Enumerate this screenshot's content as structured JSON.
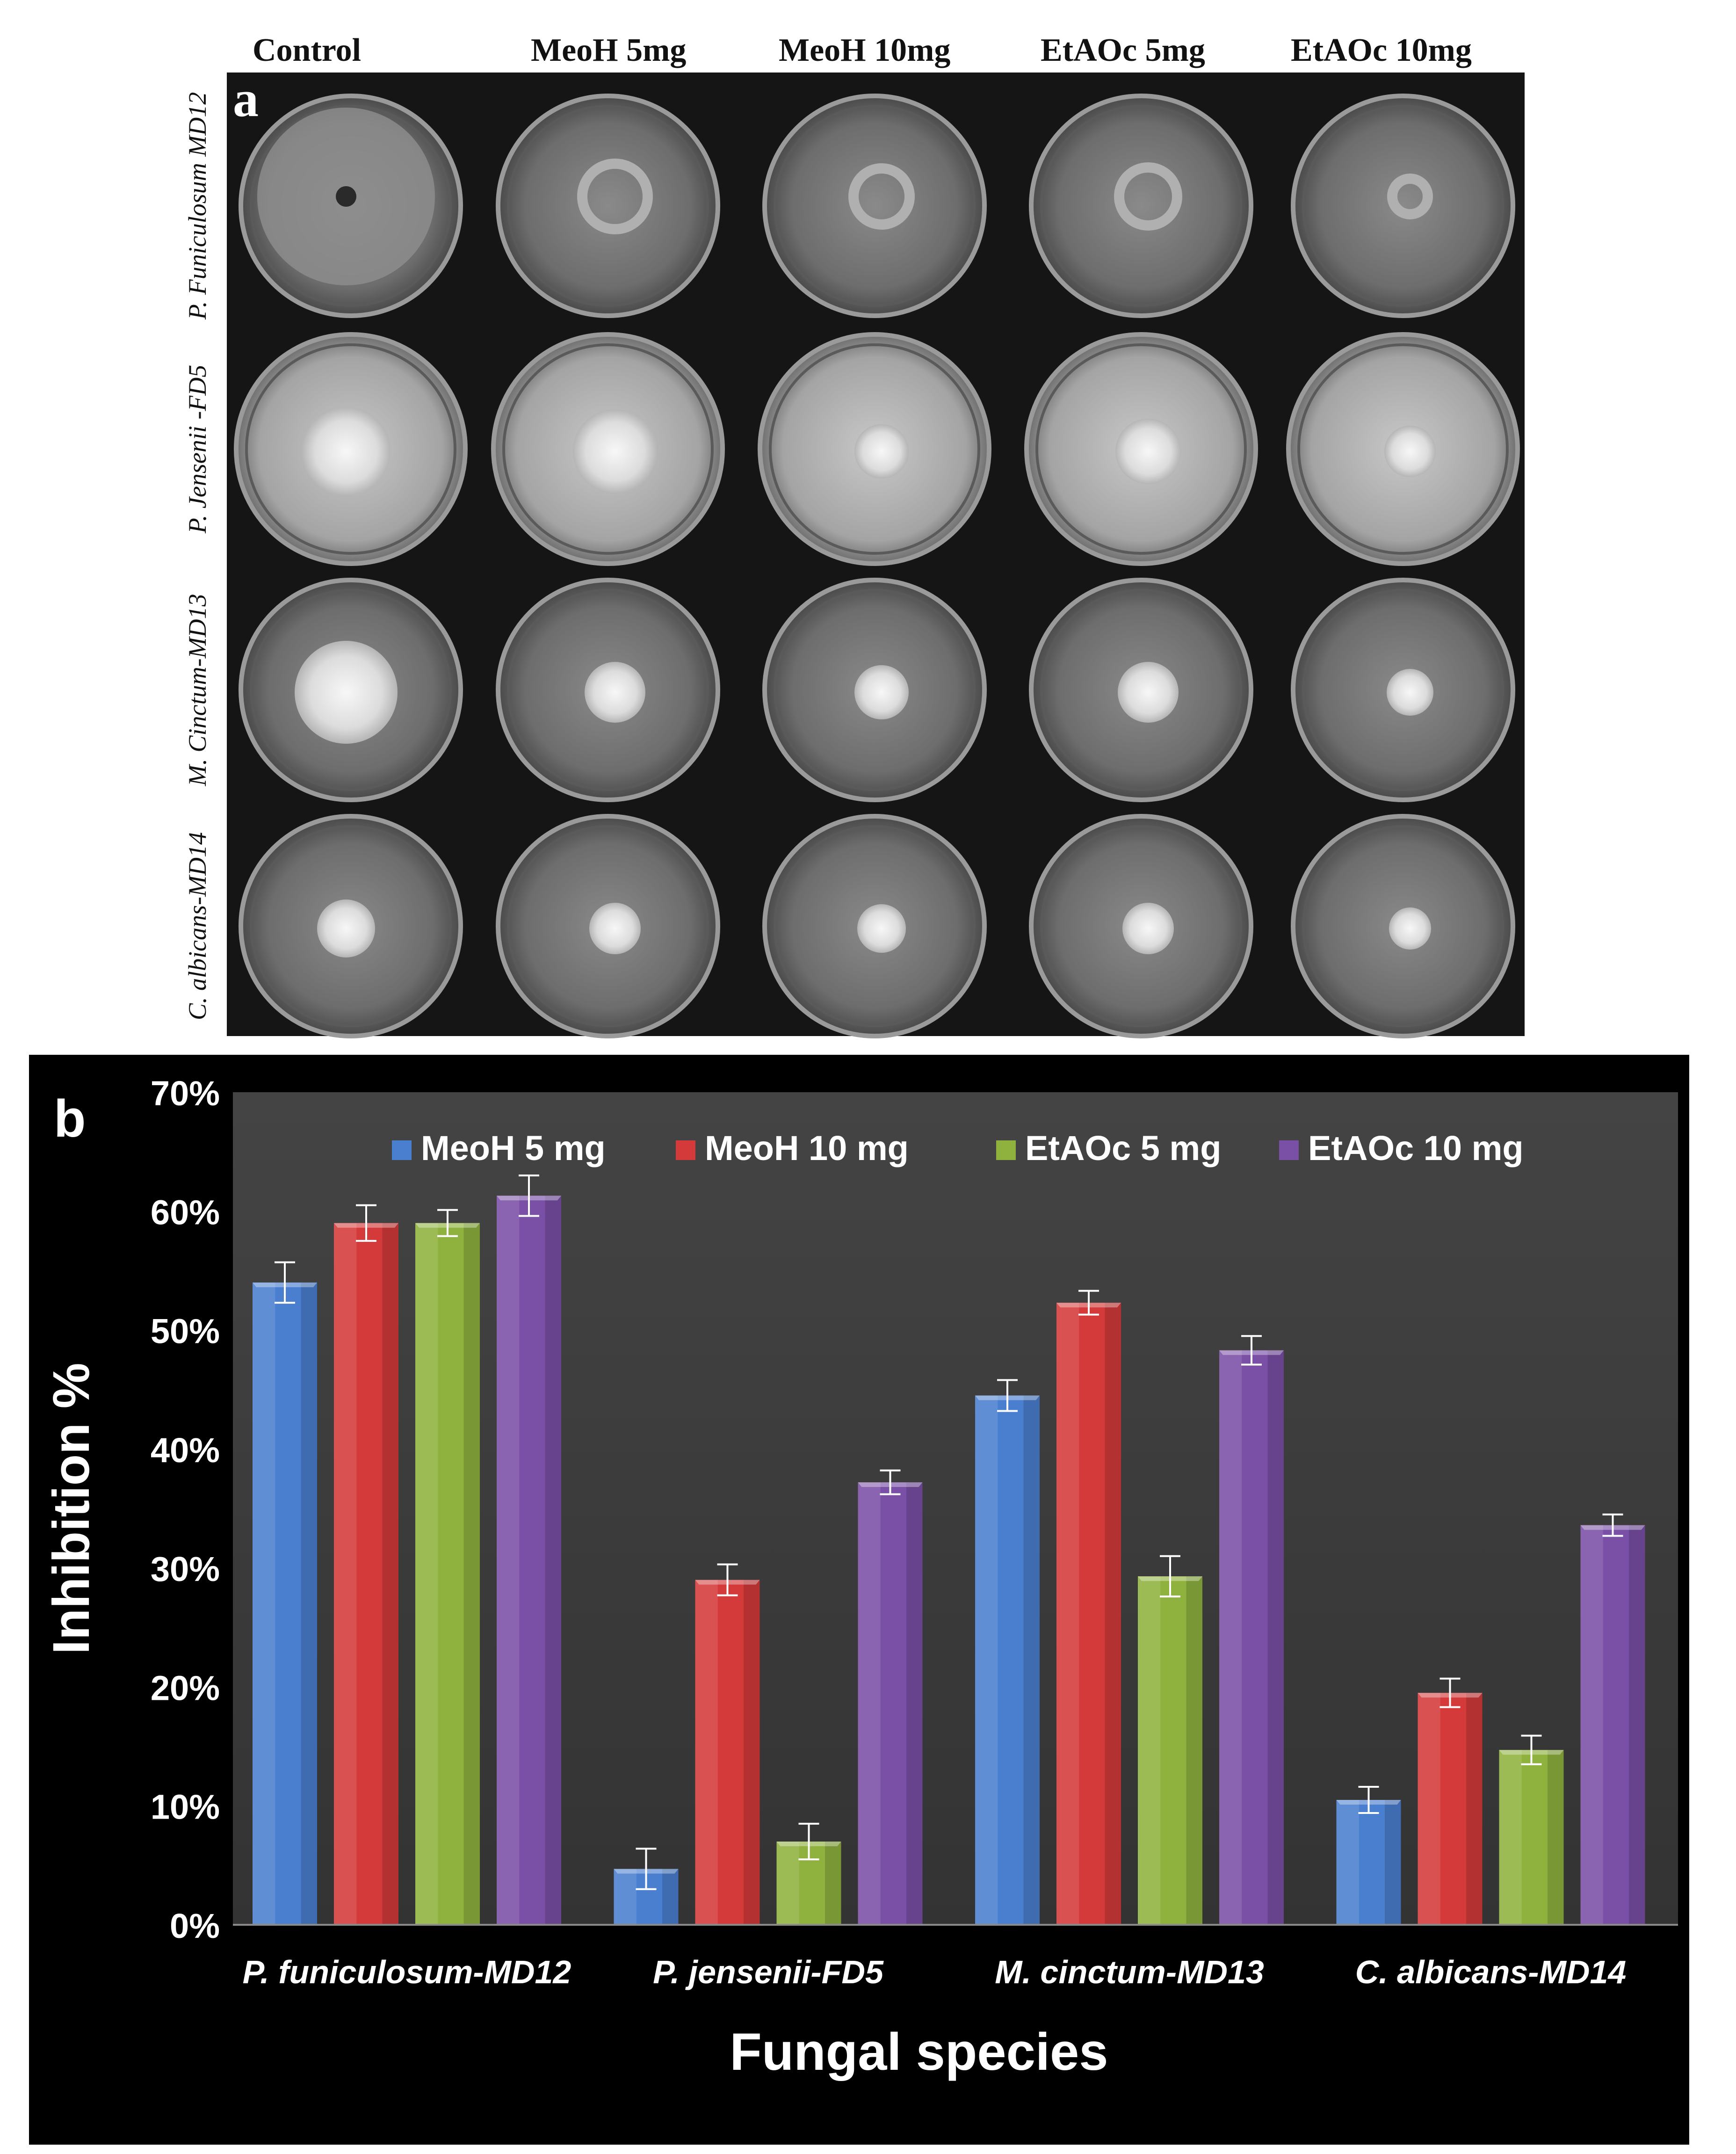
{
  "panel_a": {
    "label": "a",
    "columns": [
      "Control",
      "MeoH 5mg",
      "MeoH 10mg",
      "EtAOc 5mg",
      "EtAOc 10mg"
    ],
    "rows": [
      "P. Funiculosum MD12",
      "P. Jensenii -FD5",
      "M. Cinctum-MD13",
      "C. albicans-MD14"
    ]
  },
  "chart_data": {
    "type": "bar",
    "panel_label": "b",
    "categories": [
      "P. funiculosum-MD12",
      "P. jensenii-FD5",
      "M. cinctum-MD13",
      "C. albicans-MD14"
    ],
    "series": [
      {
        "name": "MeoH 5 mg",
        "values": [
          54,
          4.7,
          44.5,
          10.5
        ],
        "errors": [
          1.7,
          1.7,
          1.3,
          1.1
        ]
      },
      {
        "name": "MeoH 10 mg",
        "values": [
          59,
          29,
          52.3,
          19.5
        ],
        "errors": [
          1.5,
          1.3,
          1.0,
          1.2
        ]
      },
      {
        "name": "EtAOc 5 mg",
        "values": [
          59,
          7,
          29.3,
          14.7
        ],
        "errors": [
          1.1,
          1.5,
          1.7,
          1.2
        ]
      },
      {
        "name": "EtAOc 10 mg",
        "values": [
          61.3,
          37.2,
          48.3,
          33.6
        ],
        "errors": [
          1.7,
          1.0,
          1.2,
          0.9
        ]
      }
    ],
    "colors": [
      "#4a7fd0",
      "#d43a3a",
      "#8fb23e",
      "#7a4fa6"
    ],
    "ylim": [
      0,
      70
    ],
    "yticks": [
      "0%",
      "10%",
      "20%",
      "30%",
      "40%",
      "50%",
      "60%",
      "70%"
    ],
    "ylabel": "Inhibition %",
    "xlabel": "Fungal species",
    "legend_position": "top",
    "grid": false
  }
}
